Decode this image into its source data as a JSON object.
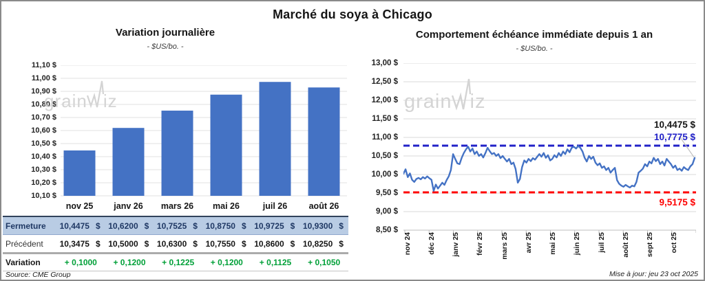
{
  "page": {
    "title": "Marché du soya à Chicago",
    "source": "Source: CME Group",
    "updated": "Mise à jour: jeu 23 oct 2025",
    "watermark": {
      "part1": "grain",
      "part2": "iz"
    }
  },
  "colors": {
    "bar_blue": "#4472c4",
    "line_blue": "#4472c4",
    "high_dash": "#2121c8",
    "low_dash": "#fe0000",
    "grid_left": "#e2e2e2",
    "grid_right": "#d9d9d9",
    "axis": "#bfbfbf",
    "leader": "#bfbfbf",
    "table_header_bg": "#b9cce4",
    "navy_text": "#1f3864",
    "green_text": "#00a038"
  },
  "chart_data": [
    {
      "type": "bar",
      "title": "Variation journalière",
      "subtitle": "- $US/bo. -",
      "categories": [
        "nov 25",
        "janv 26",
        "mars 26",
        "mai 26",
        "juil 26",
        "août 26"
      ],
      "values": [
        10.4475,
        10.62,
        10.7525,
        10.875,
        10.9725,
        10.93
      ],
      "ylim": [
        10.1,
        11.1
      ],
      "ytick_step": 0.1,
      "ytick_labels": [
        "11,10 $",
        "11,00 $",
        "10,90 $",
        "10,80 $",
        "10,70 $",
        "10,60 $",
        "10,50 $",
        "10,40 $",
        "10,30 $",
        "10,20 $",
        "10,10 $"
      ],
      "grid": true,
      "legend": "none"
    },
    {
      "type": "line",
      "title": "Comportement échéance immédiate depuis 1 an",
      "subtitle": "- $US/bo. -",
      "x_labels": [
        "nov 24",
        "déc 24",
        "janv 25",
        "févr 25",
        "mars 25",
        "avr 25",
        "mai 25",
        "juin 25",
        "juil 25",
        "août 25",
        "sept 25",
        "oct 25"
      ],
      "ylim": [
        8.5,
        13.0
      ],
      "ytick_step": 0.5,
      "ytick_labels": [
        "13,00 $",
        "12,50 $",
        "12,00 $",
        "11,50 $",
        "11,00 $",
        "10,50 $",
        "10,00 $",
        "9,50 $",
        "9,00 $",
        "8,50 $"
      ],
      "grid": true,
      "legend": "none",
      "high_line": {
        "value": 10.7775,
        "label": "10,7775 $"
      },
      "low_line": {
        "value": 9.5175,
        "label": "9,5175 $"
      },
      "last_value_label": "10,4475 $",
      "values": [
        10.02,
        10.14,
        9.93,
        10.03,
        9.86,
        9.8,
        9.88,
        9.91,
        9.87,
        9.93,
        9.89,
        9.95,
        9.9,
        9.86,
        9.56,
        9.73,
        9.62,
        9.7,
        9.78,
        9.72,
        9.85,
        9.95,
        10.12,
        10.55,
        10.42,
        10.3,
        10.28,
        10.45,
        10.58,
        10.68,
        10.75,
        10.62,
        10.7,
        10.55,
        10.62,
        10.5,
        10.55,
        10.46,
        10.58,
        10.72,
        10.63,
        10.55,
        10.58,
        10.5,
        10.55,
        10.44,
        10.5,
        10.42,
        10.35,
        10.42,
        10.28,
        10.32,
        10.15,
        9.78,
        9.88,
        10.2,
        10.38,
        10.32,
        10.42,
        10.36,
        10.44,
        10.4,
        10.48,
        10.55,
        10.48,
        10.58,
        10.45,
        10.52,
        10.38,
        10.42,
        10.52,
        10.46,
        10.58,
        10.5,
        10.62,
        10.55,
        10.68,
        10.6,
        10.72,
        10.75,
        10.7,
        10.77,
        10.72,
        10.62,
        10.45,
        10.35,
        10.5,
        10.42,
        10.48,
        10.32,
        10.25,
        10.3,
        10.18,
        10.22,
        10.12,
        10.18,
        10.05,
        10.12,
        10.18,
        9.85,
        9.75,
        9.7,
        9.67,
        9.72,
        9.68,
        9.65,
        9.7,
        9.68,
        9.8,
        10.05,
        10.1,
        10.16,
        10.28,
        10.22,
        10.35,
        10.3,
        10.45,
        10.36,
        10.42,
        10.28,
        10.35,
        10.24,
        10.42,
        10.35,
        10.28,
        10.18,
        10.24,
        10.12,
        10.16,
        10.1,
        10.2,
        10.15,
        10.12,
        10.22,
        10.28,
        10.4475
      ]
    }
  ],
  "table": {
    "currency": "$",
    "columns": [
      "nov 25",
      "janv 26",
      "mars 26",
      "mai 26",
      "juil 26",
      "août 26"
    ],
    "rows": [
      {
        "label": "Fermeture",
        "style": "fermeture",
        "currency": true,
        "values": [
          "10,4475",
          "10,6200",
          "10,7525",
          "10,8750",
          "10,9725",
          "10,9300"
        ]
      },
      {
        "label": "Précédent",
        "style": "precedent",
        "currency": true,
        "values": [
          "10,3475",
          "10,5000",
          "10,6300",
          "10,7550",
          "10,8600",
          "10,8250"
        ]
      },
      {
        "label": "Variation",
        "style": "variation",
        "currency": false,
        "values": [
          "+ 0,1000",
          "+ 0,1200",
          "+ 0,1225",
          "+ 0,1200",
          "+ 0,1125",
          "+ 0,1050"
        ]
      }
    ]
  }
}
